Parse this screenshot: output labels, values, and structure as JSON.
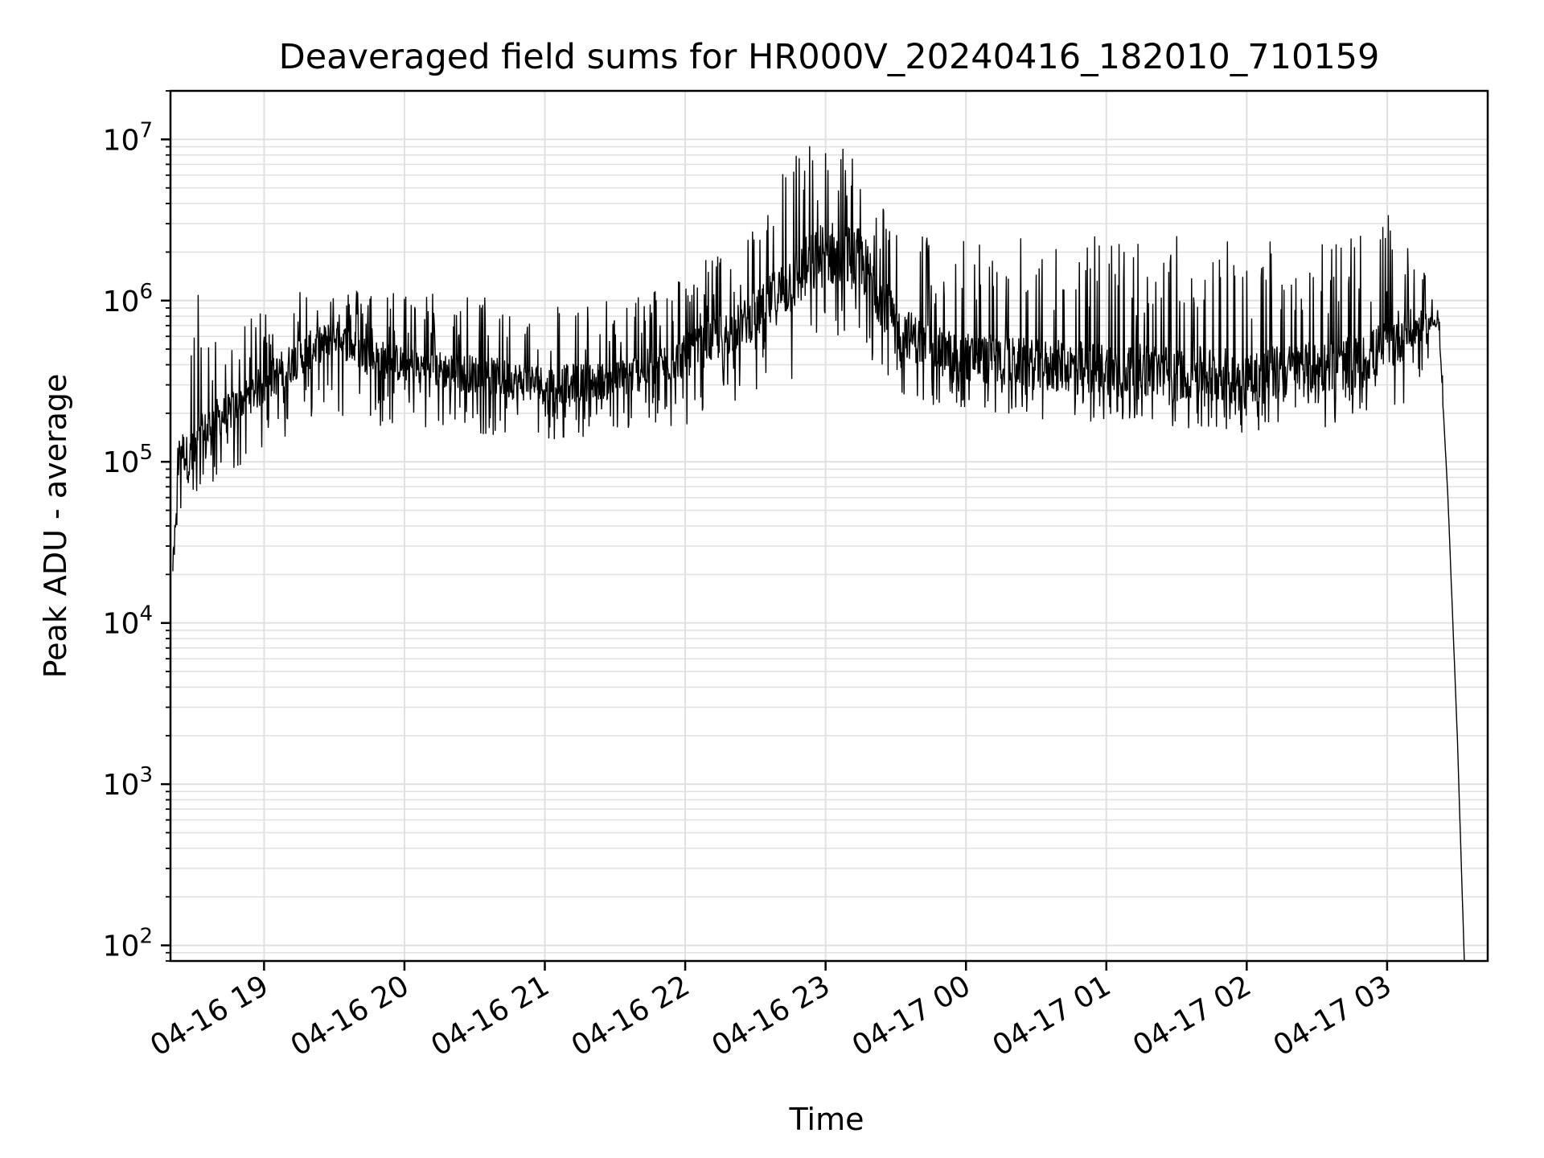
{
  "chart_data": {
    "type": "line",
    "title": "Deaveraged field sums for HR000V_20240416_182010_710159",
    "xlabel": "Time",
    "ylabel": "Peak ADU - average",
    "y_scale": "log",
    "ylim": [
      80,
      20000000
    ],
    "xlim": [
      "2024-04-16 18:20",
      "2024-04-17 03:43"
    ],
    "grid": true,
    "line_color": "#000000",
    "grid_color": "#e0e0e0",
    "x_ticks": [
      {
        "label": "04-16 19",
        "value": "2024-04-16 19:00"
      },
      {
        "label": "04-16 20",
        "value": "2024-04-16 20:00"
      },
      {
        "label": "04-16 21",
        "value": "2024-04-16 21:00"
      },
      {
        "label": "04-16 22",
        "value": "2024-04-16 22:00"
      },
      {
        "label": "04-16 23",
        "value": "2024-04-16 23:00"
      },
      {
        "label": "04-17 00",
        "value": "2024-04-17 00:00"
      },
      {
        "label": "04-17 01",
        "value": "2024-04-17 01:00"
      },
      {
        "label": "04-17 02",
        "value": "2024-04-17 02:00"
      },
      {
        "label": "04-17 03",
        "value": "2024-04-17 03:00"
      }
    ],
    "y_ticks": [
      {
        "base": "10",
        "exp": "2",
        "value": 100
      },
      {
        "base": "10",
        "exp": "3",
        "value": 1000
      },
      {
        "base": "10",
        "exp": "4",
        "value": 10000
      },
      {
        "base": "10",
        "exp": "5",
        "value": 100000
      },
      {
        "base": "10",
        "exp": "6",
        "value": 1000000
      },
      {
        "base": "10",
        "exp": "7",
        "value": 10000000
      }
    ],
    "series": [
      {
        "x": [
          "2024-04-16 18:21",
          "2024-04-16 18:24",
          "2024-04-16 18:28",
          "2024-04-16 18:33",
          "2024-04-16 18:38",
          "2024-04-16 18:45",
          "2024-04-16 18:52",
          "2024-04-16 19:00",
          "2024-04-16 19:15",
          "2024-04-16 19:30",
          "2024-04-16 19:45",
          "2024-04-16 20:00",
          "2024-04-16 20:30",
          "2024-04-16 21:00",
          "2024-04-16 21:30",
          "2024-04-16 22:00",
          "2024-04-16 22:30",
          "2024-04-16 22:45",
          "2024-04-16 23:00",
          "2024-04-16 23:15",
          "2024-04-16 23:30",
          "2024-04-16 23:45",
          "2024-04-17 00:00",
          "2024-04-17 00:30",
          "2024-04-17 01:00",
          "2024-04-17 01:30",
          "2024-04-17 02:00",
          "2024-04-17 02:30",
          "2024-04-17 02:50",
          "2024-04-17 03:05",
          "2024-04-17 03:15",
          "2024-04-17 03:22",
          "2024-04-17 03:26",
          "2024-04-17 03:30",
          "2024-04-17 03:33"
        ],
        "low": [
          18000,
          40000,
          60000,
          45000,
          70000,
          80000,
          100000,
          120000,
          160000,
          200000,
          160000,
          170000,
          150000,
          130000,
          140000,
          160000,
          260000,
          300000,
          350000,
          300000,
          250000,
          220000,
          200000,
          180000,
          170000,
          160000,
          150000,
          160000,
          180000,
          200000,
          350000,
          600000,
          200000,
          3000,
          80
        ],
        "mid": [
          22000,
          130000,
          100000,
          120000,
          180000,
          200000,
          250000,
          300000,
          450000,
          600000,
          450000,
          400000,
          350000,
          300000,
          320000,
          450000,
          800000,
          1300000,
          2000000,
          1800000,
          700000,
          500000,
          450000,
          400000,
          380000,
          360000,
          340000,
          380000,
          420000,
          600000,
          700000,
          750000,
          60000,
          2000,
          80
        ],
        "high": [
          45000,
          250000,
          700000,
          1400000,
          600000,
          600000,
          700000,
          1000000,
          1300000,
          1200000,
          1200000,
          1200000,
          1100000,
          1000000,
          1000000,
          1500000,
          3000000,
          9000000,
          11000000,
          8000000,
          3500000,
          2500000,
          2500000,
          2500000,
          2600000,
          2600000,
          2600000,
          2600000,
          2600000,
          3800000,
          1600000,
          900000,
          300000,
          4000,
          80
        ]
      }
    ]
  }
}
